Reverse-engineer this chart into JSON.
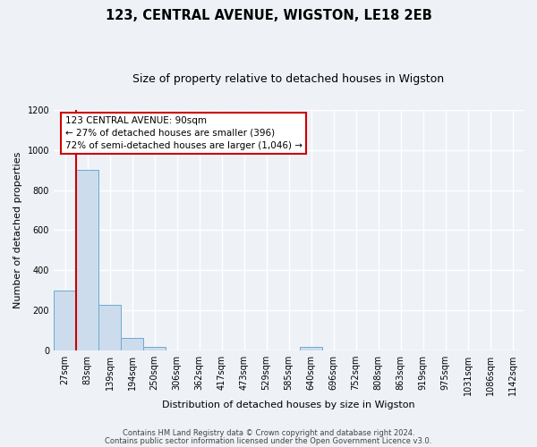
{
  "title": "123, CENTRAL AVENUE, WIGSTON, LE18 2EB",
  "subtitle": "Size of property relative to detached houses in Wigston",
  "xlabel": "Distribution of detached houses by size in Wigston",
  "ylabel": "Number of detached properties",
  "bar_labels": [
    "27sqm",
    "83sqm",
    "139sqm",
    "194sqm",
    "250sqm",
    "306sqm",
    "362sqm",
    "417sqm",
    "473sqm",
    "529sqm",
    "585sqm",
    "640sqm",
    "696sqm",
    "752sqm",
    "808sqm",
    "863sqm",
    "919sqm",
    "975sqm",
    "1031sqm",
    "1086sqm",
    "1142sqm"
  ],
  "bar_heights": [
    300,
    900,
    225,
    60,
    15,
    0,
    0,
    0,
    0,
    0,
    0,
    15,
    0,
    0,
    0,
    0,
    0,
    0,
    0,
    0,
    0
  ],
  "bar_color": "#ccdcec",
  "bar_edge_color": "#6aaad4",
  "ylim": [
    0,
    1200
  ],
  "yticks": [
    0,
    200,
    400,
    600,
    800,
    1000,
    1200
  ],
  "red_line_color": "#cc0000",
  "red_line_bar_index": 1,
  "annotation_line1": "123 CENTRAL AVENUE: 90sqm",
  "annotation_line2": "← 27% of detached houses are smaller (396)",
  "annotation_line3": "72% of semi-detached houses are larger (1,046) →",
  "footer_line1": "Contains HM Land Registry data © Crown copyright and database right 2024.",
  "footer_line2": "Contains public sector information licensed under the Open Government Licence v3.0.",
  "bg_color": "#eef2f7",
  "plot_bg_color": "#eef2f7",
  "grid_color": "#ffffff",
  "title_fontsize": 10.5,
  "subtitle_fontsize": 9,
  "axis_label_fontsize": 8,
  "tick_fontsize": 7,
  "footer_fontsize": 6
}
